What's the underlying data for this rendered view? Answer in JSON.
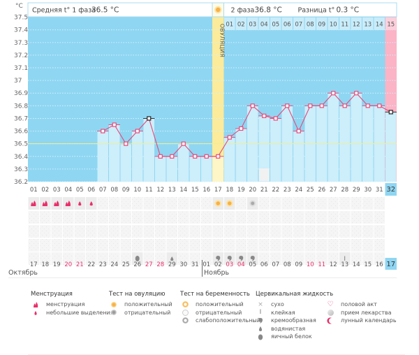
{
  "chart_data": {
    "type": "line",
    "title": "",
    "ylabel": "°C",
    "ylim": [
      36.2,
      37.5
    ],
    "yticks": [
      "37.5",
      "37.4",
      "37.3",
      "37.2",
      "37.1",
      "37",
      "36.9",
      "36.8",
      "36.7",
      "36.6",
      "36.5",
      "36.4",
      "36.3",
      "36.2"
    ],
    "ytick_values": [
      37.5,
      37.4,
      37.3,
      37.2,
      37.1,
      37.0,
      36.9,
      36.8,
      36.7,
      36.6,
      36.5,
      36.4,
      36.3,
      36.2
    ],
    "cycle_days": [
      "01",
      "02",
      "03",
      "04",
      "05",
      "06",
      "07",
      "08",
      "09",
      "10",
      "11",
      "12",
      "13",
      "14",
      "15",
      "16",
      "17",
      "18",
      "19",
      "20",
      "21",
      "22",
      "23",
      "24",
      "25",
      "26",
      "27",
      "28",
      "29",
      "30",
      "31",
      "32"
    ],
    "phase2_days": [
      "01",
      "02",
      "03",
      "04",
      "05",
      "06",
      "07",
      "08",
      "09",
      "10",
      "11",
      "12",
      "13",
      "14",
      "15"
    ],
    "temperatures": [
      null,
      null,
      null,
      null,
      null,
      null,
      36.6,
      36.65,
      36.5,
      36.6,
      36.7,
      36.4,
      36.4,
      36.5,
      36.4,
      36.4,
      36.4,
      36.55,
      36.62,
      36.8,
      36.72,
      36.7,
      36.8,
      36.6,
      36.8,
      36.8,
      36.9,
      36.8,
      36.9,
      36.8,
      36.8,
      36.75
    ],
    "highlighted_points": [
      11,
      32
    ],
    "coverline": 36.5,
    "ovulation_day": 17,
    "current_day": 32,
    "grid": true,
    "legend_position": "bottom"
  },
  "header": {
    "unit": "°C",
    "phase1_label": "Средняя t° 1 фаза",
    "phase1_value": "36.5 °C",
    "phase2_label": "2 фаза",
    "phase2_value": "36.8 °C",
    "diff_label": "Разница t°",
    "diff_value": "0.3 °C",
    "ovulation_label": "ОВУЛЯЦИЯ"
  },
  "calendar": {
    "dates": [
      "17",
      "18",
      "19",
      "20",
      "21",
      "22",
      "23",
      "24",
      "25",
      "26",
      "27",
      "28",
      "29",
      "30",
      "31",
      "01",
      "02",
      "03",
      "04",
      "05",
      "06",
      "07",
      "08",
      "09",
      "10",
      "11",
      "12",
      "13",
      "14",
      "15",
      "16",
      "17"
    ],
    "weekend_indices": [
      3,
      4,
      10,
      11,
      17,
      18,
      24,
      25
    ],
    "months": [
      {
        "name": "Октябрь",
        "start_index": 0
      },
      {
        "name": "Ноябрь",
        "start_index": 15
      }
    ]
  },
  "markers": {
    "menstruation": {
      "1": "heavy",
      "2": "heavy",
      "3": "heavy",
      "4": "heavy",
      "5": "light",
      "6": "light"
    },
    "ovulation_test": {
      "17": "positive",
      "18": "positive",
      "20": "negative"
    },
    "cervical_fluid": {
      "10": "egg-white",
      "13": "watery",
      "17": "creamy",
      "18": "creamy",
      "19": "creamy",
      "20": "creamy",
      "28": "sticky"
    },
    "lunar": {
      "21": "lunar-calendar"
    }
  },
  "legend": {
    "groups": [
      {
        "title": "Менструация",
        "items": [
          {
            "icon": "menstruation-heavy-icon",
            "label": "менструация"
          },
          {
            "icon": "menstruation-light-icon",
            "label": "небольшие выделения"
          }
        ]
      },
      {
        "title": "Тест на овуляцию",
        "items": [
          {
            "icon": "ovulation-positive-icon",
            "label": "положительный"
          },
          {
            "icon": "ovulation-negative-icon",
            "label": "отрицательный"
          }
        ]
      },
      {
        "title": "Тест на беременность",
        "items": [
          {
            "icon": "pregnancy-positive-icon",
            "label": "положительный"
          },
          {
            "icon": "pregnancy-negative-icon",
            "label": "отрицательный"
          },
          {
            "icon": "pregnancy-weak-icon",
            "label": "слабоположительный"
          }
        ]
      },
      {
        "title": "Цервикальная жидкость",
        "items": [
          {
            "icon": "dry-icon",
            "label": "сухо"
          },
          {
            "icon": "sticky-icon",
            "label": "клейкая"
          },
          {
            "icon": "creamy-icon",
            "label": "кремообразная"
          },
          {
            "icon": "watery-icon",
            "label": "водянистая"
          },
          {
            "icon": "egg-white-icon",
            "label": "яичный белок"
          }
        ]
      },
      {
        "title": "",
        "items": [
          {
            "icon": "intercourse-icon",
            "label": "половой акт"
          },
          {
            "icon": "medication-icon",
            "label": "прием лекарства"
          },
          {
            "icon": "lunar-icon",
            "label": "лунный календарь"
          }
        ]
      }
    ]
  },
  "colors": {
    "plot_bg": "#8fd6f2",
    "bar_fill": "#cdeefb",
    "line": "#e8497a",
    "ovulation": "#fbeb9a",
    "current_day": "#fbb3c6",
    "coverline": "#f3ef86",
    "weekend_text": "#e8306a"
  }
}
